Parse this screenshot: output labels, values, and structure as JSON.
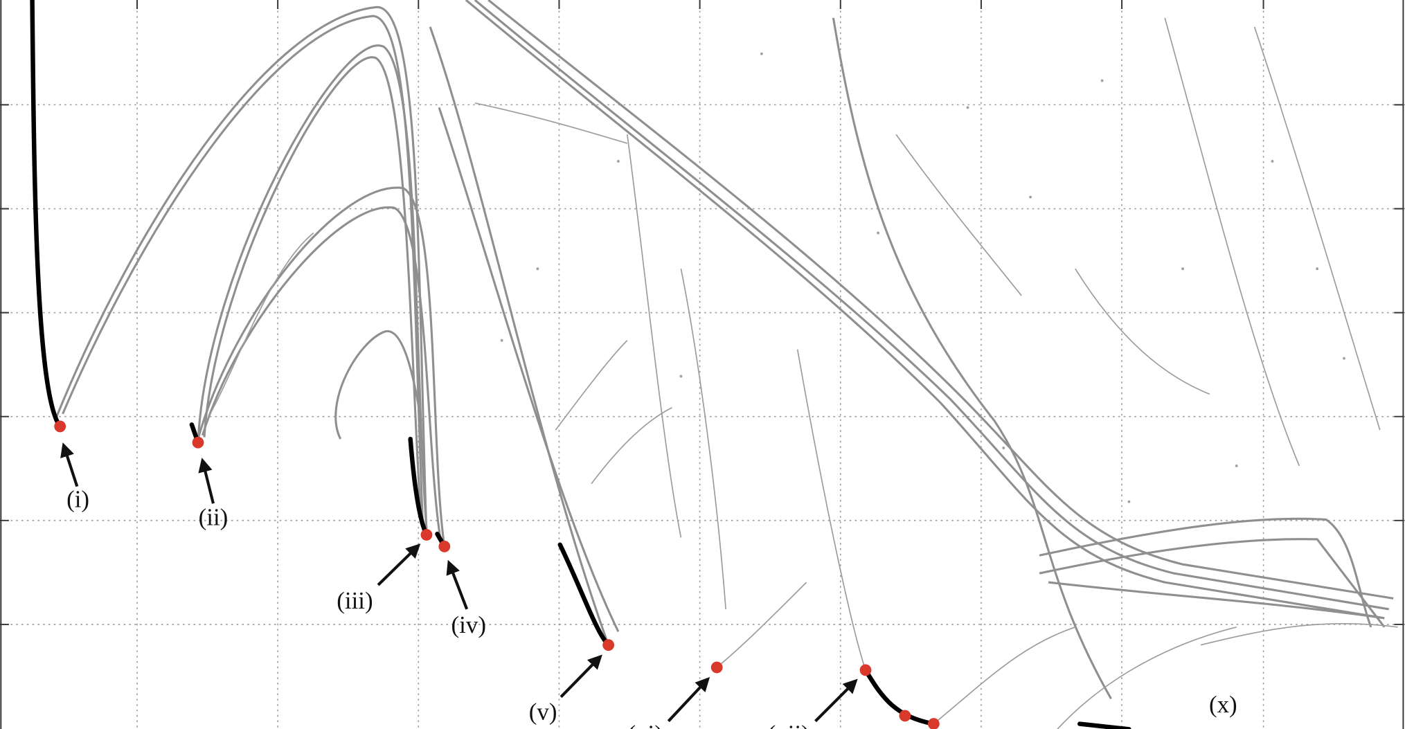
{
  "figure": {
    "annotations": [
      "(i)",
      "(ii)",
      "(iii)",
      "(iv)",
      "(v)",
      "(vi)",
      "(vii)",
      "(x)"
    ]
  }
}
